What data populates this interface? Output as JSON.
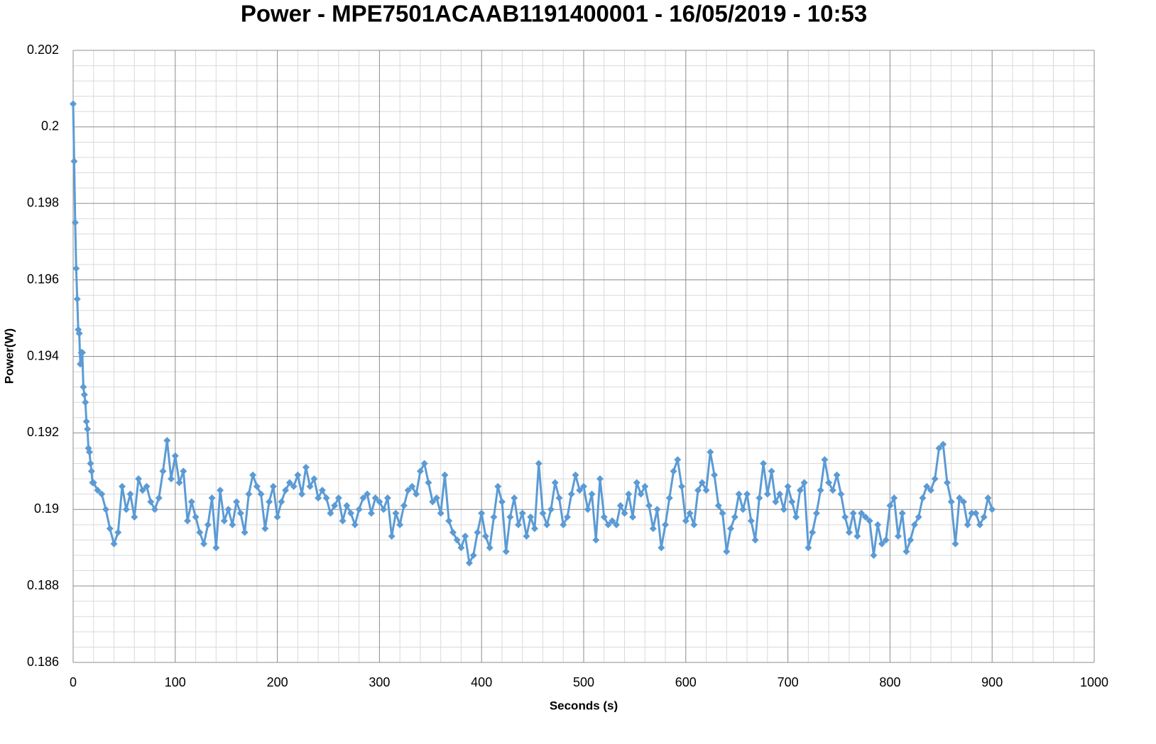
{
  "chart_data": {
    "type": "line",
    "title": "Power - MPE7501ACAAB1191400001 - 16/05/2019 - 10:53",
    "x_label": "Seconds (s)",
    "y_label": "Power(W)",
    "xlim": [
      0,
      1000
    ],
    "xticks": [
      0,
      100,
      200,
      300,
      400,
      500,
      600,
      700,
      800,
      900,
      1000
    ],
    "ylim": [
      0.186,
      0.202
    ],
    "yticks": [
      0.186,
      0.188,
      0.19,
      0.192,
      0.194,
      0.196,
      0.198,
      0.2,
      0.202
    ],
    "grid": true,
    "minor_grid_divisions": 5,
    "marker": "diamond",
    "series": [
      {
        "color": "#5b9bd5",
        "x": [
          0,
          1,
          2,
          3,
          4,
          5,
          6,
          7,
          8,
          9,
          10,
          11,
          12,
          13,
          14,
          15,
          16,
          17,
          18,
          19,
          20,
          24,
          28,
          32,
          36,
          40,
          44,
          48,
          52,
          56,
          60,
          64,
          68,
          72,
          76,
          80,
          84,
          88,
          92,
          96,
          100,
          104,
          108,
          112,
          116,
          120,
          124,
          128,
          132,
          136,
          140,
          144,
          148,
          152,
          156,
          160,
          164,
          168,
          172,
          176,
          180,
          184,
          188,
          192,
          196,
          200,
          204,
          208,
          212,
          216,
          220,
          224,
          228,
          232,
          236,
          240,
          244,
          248,
          252,
          256,
          260,
          264,
          268,
          272,
          276,
          280,
          284,
          288,
          292,
          296,
          300,
          304,
          308,
          312,
          316,
          320,
          324,
          328,
          332,
          336,
          340,
          344,
          348,
          352,
          356,
          360,
          364,
          368,
          372,
          376,
          380,
          384,
          388,
          392,
          396,
          400,
          404,
          408,
          412,
          416,
          420,
          424,
          428,
          432,
          436,
          440,
          444,
          448,
          452,
          456,
          460,
          464,
          468,
          472,
          476,
          480,
          484,
          488,
          492,
          496,
          500,
          504,
          508,
          512,
          516,
          520,
          524,
          528,
          532,
          536,
          540,
          544,
          548,
          552,
          556,
          560,
          564,
          568,
          572,
          576,
          580,
          584,
          588,
          592,
          596,
          600,
          604,
          608,
          612,
          616,
          620,
          624,
          628,
          632,
          636,
          640,
          644,
          648,
          652,
          656,
          660,
          664,
          668,
          672,
          676,
          680,
          684,
          688,
          692,
          696,
          700,
          704,
          708,
          712,
          716,
          720,
          724,
          728,
          732,
          736,
          740,
          744,
          748,
          752,
          756,
          760,
          764,
          768,
          772,
          776,
          780,
          784,
          788,
          792,
          796,
          800,
          804,
          808,
          812,
          816,
          820,
          824,
          828,
          832,
          836,
          840,
          844,
          848,
          852,
          856,
          860,
          864,
          868,
          872,
          876,
          880,
          884,
          888,
          892,
          896,
          900
        ],
        "values": [
          0.2006,
          0.1991,
          0.1975,
          0.1963,
          0.1955,
          0.1947,
          0.1946,
          0.1938,
          0.1941,
          0.1941,
          0.1932,
          0.193,
          0.1928,
          0.1923,
          0.1921,
          0.1916,
          0.1915,
          0.1912,
          0.191,
          0.1907,
          0.1907,
          0.1905,
          0.1904,
          0.19,
          0.1895,
          0.1891,
          0.1894,
          0.1906,
          0.19,
          0.1904,
          0.1898,
          0.1908,
          0.1905,
          0.1906,
          0.1902,
          0.19,
          0.1903,
          0.191,
          0.1918,
          0.1908,
          0.1914,
          0.1907,
          0.191,
          0.1897,
          0.1902,
          0.1898,
          0.1894,
          0.1891,
          0.1896,
          0.1903,
          0.189,
          0.1905,
          0.1897,
          0.19,
          0.1896,
          0.1902,
          0.1899,
          0.1894,
          0.1904,
          0.1909,
          0.1906,
          0.1904,
          0.1895,
          0.1902,
          0.1906,
          0.1898,
          0.1902,
          0.1905,
          0.1907,
          0.1906,
          0.1909,
          0.1904,
          0.1911,
          0.1906,
          0.1908,
          0.1903,
          0.1905,
          0.1903,
          0.1899,
          0.1901,
          0.1903,
          0.1897,
          0.1901,
          0.1899,
          0.1896,
          0.19,
          0.1903,
          0.1904,
          0.1899,
          0.1903,
          0.1902,
          0.19,
          0.1903,
          0.1893,
          0.1899,
          0.1896,
          0.1901,
          0.1905,
          0.1906,
          0.1904,
          0.191,
          0.1912,
          0.1907,
          0.1902,
          0.1903,
          0.1899,
          0.1909,
          0.1897,
          0.1894,
          0.1892,
          0.189,
          0.1893,
          0.1886,
          0.1888,
          0.1894,
          0.1899,
          0.1893,
          0.189,
          0.1898,
          0.1906,
          0.1902,
          0.1889,
          0.1898,
          0.1903,
          0.1896,
          0.1899,
          0.1893,
          0.1898,
          0.1895,
          0.1912,
          0.1899,
          0.1896,
          0.19,
          0.1907,
          0.1903,
          0.1896,
          0.1898,
          0.1904,
          0.1909,
          0.1905,
          0.1906,
          0.19,
          0.1904,
          0.1892,
          0.1908,
          0.1898,
          0.1896,
          0.1897,
          0.1896,
          0.1901,
          0.1899,
          0.1904,
          0.1898,
          0.1907,
          0.1904,
          0.1906,
          0.1901,
          0.1895,
          0.19,
          0.189,
          0.1896,
          0.1903,
          0.191,
          0.1913,
          0.1906,
          0.1897,
          0.1899,
          0.1896,
          0.1905,
          0.1907,
          0.1905,
          0.1915,
          0.1909,
          0.1901,
          0.1899,
          0.1889,
          0.1895,
          0.1898,
          0.1904,
          0.19,
          0.1904,
          0.1897,
          0.1892,
          0.1903,
          0.1912,
          0.1904,
          0.191,
          0.1902,
          0.1904,
          0.19,
          0.1906,
          0.1902,
          0.1898,
          0.1905,
          0.1907,
          0.189,
          0.1894,
          0.1899,
          0.1905,
          0.1913,
          0.1907,
          0.1905,
          0.1909,
          0.1904,
          0.1898,
          0.1894,
          0.1899,
          0.1893,
          0.1899,
          0.1898,
          0.1897,
          0.1888,
          0.1896,
          0.1891,
          0.1892,
          0.1901,
          0.1903,
          0.1893,
          0.1899,
          0.1889,
          0.1892,
          0.1896,
          0.1898,
          0.1903,
          0.1906,
          0.1905,
          0.1908,
          0.1916,
          0.1917,
          0.1907,
          0.1902,
          0.1891,
          0.1903,
          0.1902,
          0.1896,
          0.1899,
          0.1899,
          0.1896,
          0.1898,
          0.1903,
          0.19
        ]
      }
    ]
  }
}
